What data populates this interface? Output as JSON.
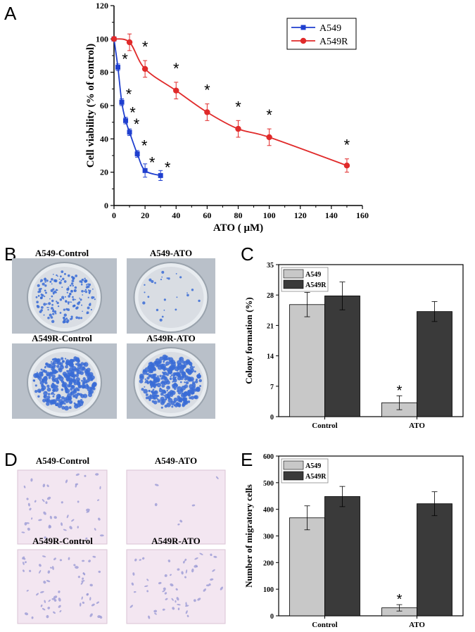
{
  "panels": {
    "a": {
      "letter": "A"
    },
    "b": {
      "letter": "B",
      "images": [
        {
          "label": "A549-Control",
          "density": "medium"
        },
        {
          "label": "A549-ATO",
          "density": "low"
        },
        {
          "label": "A549R-Control",
          "density": "high"
        },
        {
          "label": "A549R-ATO",
          "density": "high"
        }
      ]
    },
    "c": {
      "letter": "C"
    },
    "d": {
      "letter": "D",
      "images": [
        {
          "label": "A549-Control"
        },
        {
          "label": "A549-ATO"
        },
        {
          "label": "A549R-Control"
        },
        {
          "label": "A549R-ATO"
        }
      ]
    },
    "e": {
      "letter": "E"
    }
  },
  "colors": {
    "a549_line": "#1f3fcf",
    "a549r_line": "#e02a2a",
    "bar_light": "#c8c8c8",
    "bar_dark": "#3a3a3a",
    "colony_stain": "#3a6cd6",
    "plate_bg": "#d9dde3",
    "micro_bg": "#f3e6f1"
  },
  "chart_data": [
    {
      "id": "A",
      "type": "line",
      "xlabel": "ATO ( μM)",
      "ylabel": "Cell viability (% of control)",
      "xlim": [
        0,
        160
      ],
      "ylim": [
        0,
        120
      ],
      "xticks": [
        0,
        20,
        40,
        60,
        80,
        100,
        120,
        140,
        160
      ],
      "yticks": [
        0,
        20,
        40,
        60,
        80,
        100,
        120
      ],
      "legend": "top-right",
      "series": [
        {
          "name": "A549",
          "x": [
            0,
            2.5,
            5,
            7.5,
            10,
            15,
            20,
            30
          ],
          "y": [
            100,
            83,
            62,
            51,
            44,
            31,
            21,
            18
          ],
          "err": [
            0,
            2,
            2,
            2,
            2,
            2,
            4,
            3
          ],
          "star": [
            false,
            true,
            true,
            true,
            true,
            true,
            true,
            true
          ]
        },
        {
          "name": "A549R",
          "x": [
            0,
            10,
            20,
            40,
            60,
            80,
            100,
            150
          ],
          "y": [
            100,
            98,
            82,
            69,
            56,
            46,
            41,
            24
          ],
          "err": [
            0,
            5,
            5,
            5,
            5,
            5,
            5,
            4
          ],
          "star": [
            false,
            false,
            true,
            true,
            true,
            true,
            true,
            true
          ]
        }
      ],
      "star_symbol": "*"
    },
    {
      "id": "C",
      "type": "bar",
      "ylabel": "Colony formation (%)",
      "categories": [
        "Control",
        "ATO"
      ],
      "ylim": [
        0,
        35
      ],
      "yticks": [
        0,
        7,
        14,
        21,
        28,
        35
      ],
      "legend": "top-left",
      "series": [
        {
          "name": "A549",
          "values": [
            25.8,
            3.2
          ],
          "err": [
            2.8,
            1.6
          ]
        },
        {
          "name": "A549R",
          "values": [
            27.8,
            24.2
          ],
          "err": [
            3.2,
            2.3
          ]
        }
      ],
      "star": [
        [
          false,
          true
        ],
        [
          false,
          false
        ]
      ],
      "star_symbol": "*"
    },
    {
      "id": "E",
      "type": "bar",
      "ylabel": "Number of migratory cells",
      "categories": [
        "Control",
        "ATO"
      ],
      "ylim": [
        0,
        600
      ],
      "yticks": [
        0,
        100,
        200,
        300,
        400,
        500,
        600
      ],
      "legend": "top-left",
      "series": [
        {
          "name": "A549",
          "values": [
            368,
            30
          ],
          "err": [
            45,
            12
          ]
        },
        {
          "name": "A549R",
          "values": [
            448,
            421
          ],
          "err": [
            38,
            45
          ]
        }
      ],
      "star": [
        [
          false,
          true
        ],
        [
          false,
          false
        ]
      ],
      "star_symbol": "*"
    }
  ]
}
